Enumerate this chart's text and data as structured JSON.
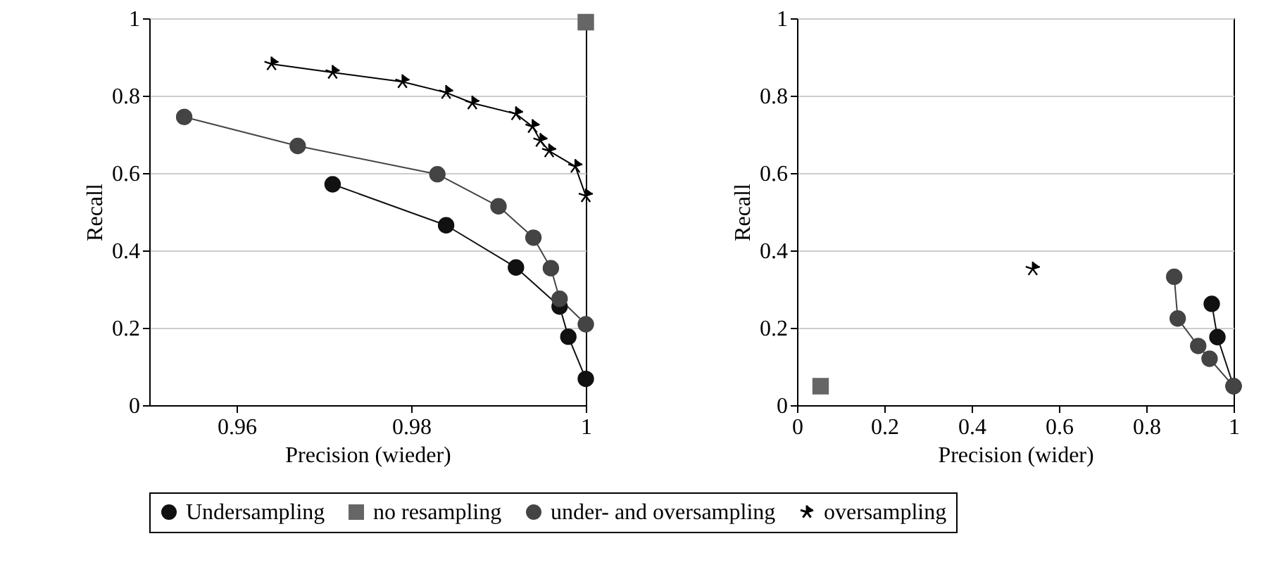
{
  "chart_data": [
    {
      "type": "line",
      "xlabel": "Precision (wieder)",
      "ylabel": "Recall",
      "xlim": [
        0.95,
        1
      ],
      "ylim": [
        0,
        1
      ],
      "xticks": [
        0.96,
        0.98,
        1
      ],
      "yticks": [
        0,
        0.2,
        0.4,
        0.6,
        0.8,
        1
      ],
      "grid": "y",
      "legend": "bottom",
      "series": [
        {
          "name": "Undersampling",
          "color": "#111111",
          "marker": "circle",
          "x": [
            0.971,
            0.984,
            0.992,
            0.997,
            0.998,
            1.0
          ],
          "values": [
            0.571,
            0.465,
            0.356,
            0.255,
            0.177,
            0.068
          ]
        },
        {
          "name": "no resampling",
          "color": "#666666",
          "marker": "square",
          "x": [
            1.0
          ],
          "values": [
            0.99
          ]
        },
        {
          "name": "under- and oversampling",
          "color": "#444444",
          "marker": "circle",
          "x": [
            0.954,
            0.967,
            0.983,
            0.99,
            0.994,
            0.996,
            0.997,
            1.0
          ],
          "values": [
            0.745,
            0.67,
            0.597,
            0.514,
            0.433,
            0.354,
            0.275,
            0.209
          ]
        },
        {
          "name": "oversampling",
          "color": "#000000",
          "marker": "star",
          "x": [
            0.964,
            0.971,
            0.979,
            0.984,
            0.987,
            0.992,
            0.9939,
            0.9948,
            0.9958,
            0.9988,
            1.0
          ],
          "values": [
            0.882,
            0.86,
            0.836,
            0.808,
            0.781,
            0.753,
            0.72,
            0.684,
            0.657,
            0.617,
            0.541
          ]
        }
      ]
    },
    {
      "type": "line",
      "xlabel": "Precision (wider)",
      "ylabel": "Recall",
      "xlim": [
        0,
        1
      ],
      "ylim": [
        0,
        1
      ],
      "xticks": [
        0,
        0.2,
        0.4,
        0.6,
        0.8,
        1
      ],
      "yticks": [
        0,
        0.2,
        0.4,
        0.6,
        0.8,
        1
      ],
      "grid": "y",
      "legend": "bottom",
      "series": [
        {
          "name": "Undersampling",
          "color": "#111111",
          "marker": "circle",
          "x": [
            0.95,
            0.963,
            1.0
          ],
          "values": [
            0.262,
            0.176,
            0.049
          ]
        },
        {
          "name": "no resampling",
          "color": "#666666",
          "marker": "square",
          "x": [
            0.054
          ],
          "values": [
            0.049
          ]
        },
        {
          "name": "under- and oversampling",
          "color": "#444444",
          "marker": "circle",
          "x": [
            0.864,
            0.872,
            0.919,
            0.945,
            1.0
          ],
          "values": [
            0.332,
            0.224,
            0.153,
            0.12,
            0.049
          ]
        },
        {
          "name": "oversampling",
          "color": "#000000",
          "marker": "star",
          "x": [
            0.54
          ],
          "values": [
            0.352
          ]
        }
      ]
    }
  ]
}
